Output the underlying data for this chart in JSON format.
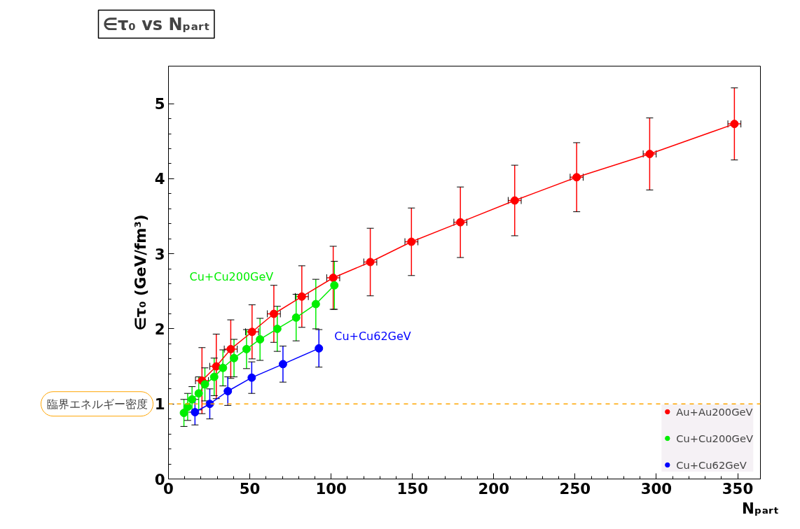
{
  "chart_data": {
    "type": "line",
    "title": "∈τ₀ vs Nₚₐᵣₜ",
    "xlabel": "Nₚₐᵣₜ",
    "ylabel": "∈τ₀ (GeV/fm³)",
    "xlim": [
      0,
      364
    ],
    "ylim": [
      0,
      5.5
    ],
    "xticks": [
      0,
      50,
      100,
      150,
      200,
      250,
      300,
      350
    ],
    "yticks": [
      0,
      1,
      2,
      3,
      4,
      5
    ],
    "grid": false,
    "legend": "bottom right",
    "marker": "circle",
    "line_style": "solid",
    "series": [
      {
        "name": "Au+Au200GeV",
        "color": "#ff0000",
        "x": [
          20.6,
          29.4,
          38.3,
          51.4,
          64.8,
          82,
          101.3,
          124.1,
          149.4,
          179.5,
          212.9,
          251,
          295.9,
          348
        ],
        "values": [
          1.31,
          1.5,
          1.73,
          1.96,
          2.2,
          2.43,
          2.68,
          2.89,
          3.16,
          3.42,
          3.71,
          4.02,
          4.33,
          4.73
        ],
        "errors": [
          0.44,
          0.43,
          0.39,
          0.36,
          0.38,
          0.41,
          0.42,
          0.45,
          0.45,
          0.47,
          0.47,
          0.46,
          0.48,
          0.48
        ],
        "xerrors": [
          4,
          4,
          4,
          4,
          4,
          4,
          4,
          4,
          4,
          4,
          4,
          4,
          4,
          4
        ]
      },
      {
        "name": "Cu+Cu200GeV",
        "color": "#00ee00",
        "x": [
          9.5,
          11.8,
          14.5,
          18.6,
          22.4,
          28.1,
          33.5,
          40.3,
          48,
          56.3,
          66.9,
          78.5,
          90.6,
          102
        ],
        "values": [
          0.88,
          0.96,
          1.06,
          1.14,
          1.26,
          1.36,
          1.48,
          1.61,
          1.73,
          1.86,
          2.0,
          2.15,
          2.33,
          2.58
        ],
        "errors": [
          0.18,
          0.18,
          0.17,
          0.22,
          0.22,
          0.25,
          0.24,
          0.25,
          0.26,
          0.28,
          0.3,
          0.31,
          0.33,
          0.32
        ]
      },
      {
        "name": "Cu+Cu62GeV",
        "color": "#0000ff",
        "x": [
          16.3,
          25.4,
          36.5,
          51.2,
          70.4,
          92.5
        ],
        "values": [
          0.89,
          1.0,
          1.17,
          1.35,
          1.53,
          1.74
        ],
        "errors": [
          0.17,
          0.2,
          0.19,
          0.21,
          0.24,
          0.25
        ]
      }
    ],
    "ref_lines": [
      {
        "axis": "y",
        "value": 1,
        "label": "臨界エネルギー密度",
        "color": "#ffa500",
        "line_style": "dashed"
      }
    ],
    "annotations": [
      "Cu+Cu200GeV",
      {
        "text": "Cu+Cu62GeV",
        "x": 92.5,
        "y": 1.74
      }
    ]
  }
}
